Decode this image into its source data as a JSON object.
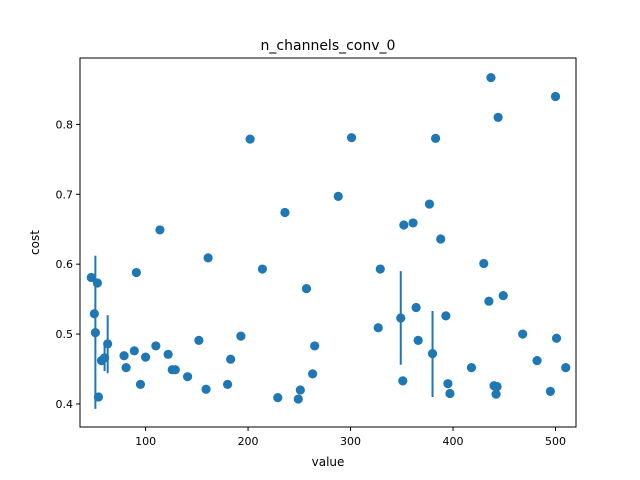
{
  "chart_data": {
    "type": "scatter",
    "title": "n_channels_conv_0",
    "xlabel": "value",
    "ylabel": "cost",
    "xlim": [
      36,
      520
    ],
    "ylim": [
      0.367,
      0.895
    ],
    "xticks": [
      100,
      200,
      300,
      400,
      500
    ],
    "yticks": [
      0.4,
      0.5,
      0.6,
      0.7,
      0.8
    ],
    "xtick_labels": [
      "100",
      "200",
      "300",
      "400",
      "500"
    ],
    "ytick_labels": [
      "0.4",
      "0.5",
      "0.6",
      "0.7",
      "0.8"
    ],
    "grid": false,
    "marker_color": "#1f77b4",
    "points": [
      {
        "x": 47,
        "y": 0.581
      },
      {
        "x": 50,
        "y": 0.529
      },
      {
        "x": 51,
        "y": 0.502,
        "err": [
          0.393,
          0.612
        ]
      },
      {
        "x": 53,
        "y": 0.573
      },
      {
        "x": 54,
        "y": 0.41
      },
      {
        "x": 57,
        "y": 0.462
      },
      {
        "x": 60,
        "y": 0.466,
        "err": [
          0.447,
          0.488
        ]
      },
      {
        "x": 63,
        "y": 0.486,
        "err": [
          0.444,
          0.527
        ]
      },
      {
        "x": 79,
        "y": 0.469
      },
      {
        "x": 81,
        "y": 0.452
      },
      {
        "x": 89,
        "y": 0.476
      },
      {
        "x": 91,
        "y": 0.588
      },
      {
        "x": 95,
        "y": 0.428
      },
      {
        "x": 100,
        "y": 0.467
      },
      {
        "x": 110,
        "y": 0.483
      },
      {
        "x": 114,
        "y": 0.649
      },
      {
        "x": 122,
        "y": 0.471
      },
      {
        "x": 126,
        "y": 0.449
      },
      {
        "x": 129,
        "y": 0.449
      },
      {
        "x": 141,
        "y": 0.439
      },
      {
        "x": 152,
        "y": 0.491
      },
      {
        "x": 159,
        "y": 0.421
      },
      {
        "x": 161,
        "y": 0.609
      },
      {
        "x": 180,
        "y": 0.428
      },
      {
        "x": 183,
        "y": 0.464
      },
      {
        "x": 193,
        "y": 0.497
      },
      {
        "x": 202,
        "y": 0.779
      },
      {
        "x": 214,
        "y": 0.593
      },
      {
        "x": 229,
        "y": 0.409
      },
      {
        "x": 236,
        "y": 0.674
      },
      {
        "x": 249,
        "y": 0.407
      },
      {
        "x": 251,
        "y": 0.42
      },
      {
        "x": 257,
        "y": 0.565
      },
      {
        "x": 263,
        "y": 0.443
      },
      {
        "x": 265,
        "y": 0.483
      },
      {
        "x": 288,
        "y": 0.697
      },
      {
        "x": 301,
        "y": 0.781
      },
      {
        "x": 327,
        "y": 0.509
      },
      {
        "x": 329,
        "y": 0.593
      },
      {
        "x": 349,
        "y": 0.523,
        "err": [
          0.456,
          0.59
        ]
      },
      {
        "x": 351,
        "y": 0.433
      },
      {
        "x": 352,
        "y": 0.656
      },
      {
        "x": 361,
        "y": 0.659
      },
      {
        "x": 364,
        "y": 0.538
      },
      {
        "x": 366,
        "y": 0.491
      },
      {
        "x": 377,
        "y": 0.686
      },
      {
        "x": 380,
        "y": 0.472,
        "err": [
          0.41,
          0.533
        ]
      },
      {
        "x": 383,
        "y": 0.78
      },
      {
        "x": 388,
        "y": 0.636
      },
      {
        "x": 393,
        "y": 0.526
      },
      {
        "x": 395,
        "y": 0.429
      },
      {
        "x": 397,
        "y": 0.415
      },
      {
        "x": 418,
        "y": 0.452
      },
      {
        "x": 430,
        "y": 0.601
      },
      {
        "x": 435,
        "y": 0.547
      },
      {
        "x": 437,
        "y": 0.867
      },
      {
        "x": 440,
        "y": 0.426
      },
      {
        "x": 442,
        "y": 0.414
      },
      {
        "x": 443,
        "y": 0.425
      },
      {
        "x": 444,
        "y": 0.81
      },
      {
        "x": 449,
        "y": 0.555
      },
      {
        "x": 468,
        "y": 0.5
      },
      {
        "x": 482,
        "y": 0.462
      },
      {
        "x": 495,
        "y": 0.418
      },
      {
        "x": 500,
        "y": 0.84
      },
      {
        "x": 501,
        "y": 0.494
      },
      {
        "x": 510,
        "y": 0.452
      }
    ]
  }
}
